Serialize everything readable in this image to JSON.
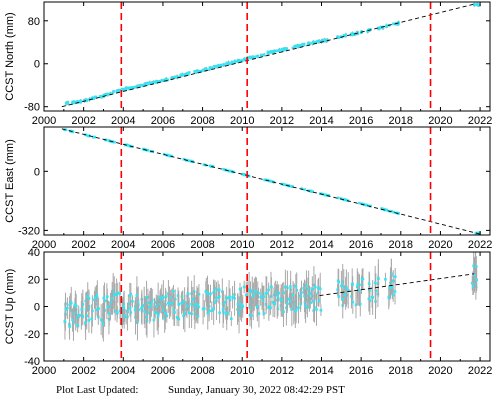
{
  "footer": {
    "label": "Plot Last Updated:",
    "timestamp": "Sunday, January 30, 2022 08:42:29 PST"
  },
  "style": {
    "trend_line_color": "#000000",
    "point_color": "#33e5f5",
    "error_bar_color": "#a8a8a8",
    "event_line_color": "#ff0000"
  },
  "chart_data": [
    {
      "type": "scatter",
      "ylabel": "CCST North (mm)",
      "xlim": [
        2000,
        2022.5
      ],
      "ylim": [
        -88,
        115
      ],
      "xticks": [
        "2000",
        "2002",
        "2004",
        "2006",
        "2008",
        "2010",
        "2012",
        "2014",
        "2016",
        "2018",
        "2020",
        "2022"
      ],
      "yticks": [
        -80,
        0,
        80
      ],
      "event_lines_x": [
        2003.9,
        2010.25,
        2019.5
      ],
      "trend": {
        "x": [
          2000.9,
          2021.8
        ],
        "y": [
          -80,
          112
        ]
      },
      "series": [
        {
          "x": [
            2001.0,
            2001.5,
            2002.0,
            2002.5,
            2003.0,
            2003.5,
            2004.0,
            2004.5,
            2005.0,
            2005.5,
            2006.0,
            2006.5,
            2007.0,
            2007.5,
            2008.0,
            2008.5,
            2009.0,
            2009.5,
            2010.0,
            2010.5,
            2011.0,
            2011.5,
            2012.0,
            2012.5,
            2013.0,
            2013.5,
            2013.9,
            2014.8,
            2015.3,
            2015.9,
            2016.8,
            2017.3,
            2021.7
          ],
          "y": [
            -73,
            -72,
            -70,
            -64,
            -60,
            -53,
            -48,
            -44,
            -39,
            -35,
            -31,
            -26,
            -21,
            -16,
            -12,
            -7,
            -2,
            2,
            7,
            12,
            17,
            22,
            26,
            30,
            35,
            39,
            41,
            49,
            53,
            58,
            65,
            70,
            110
          ]
        }
      ]
    },
    {
      "type": "scatter",
      "ylabel": "CCST East (mm)",
      "xlim": [
        2000,
        2022.5
      ],
      "ylim": [
        -345,
        240
      ],
      "xticks": [
        "2000",
        "2002",
        "2004",
        "2006",
        "2008",
        "2010",
        "2012",
        "2014",
        "2016",
        "2018",
        "2020",
        "2022"
      ],
      "yticks": [
        0,
        -320
      ],
      "event_lines_x": [
        2003.9,
        2010.25,
        2019.5
      ],
      "trend": {
        "x": [
          2000.9,
          2022
        ],
        "y": [
          230,
          -340
        ]
      },
      "series": [
        {
          "x": [
            2001.0,
            2002.0,
            2003.0,
            2004.0,
            2005.0,
            2006.0,
            2007.0,
            2008.0,
            2009.0,
            2010.0,
            2011.0,
            2012.0,
            2013.0,
            2013.9,
            2014.8,
            2015.9,
            2016.8,
            2017.3,
            2021.7
          ],
          "y": [
            227,
            200,
            173,
            146,
            120,
            93,
            66,
            39,
            12,
            -15,
            -42,
            -69,
            -95,
            -120,
            -144,
            -173,
            -197,
            -211,
            -335
          ]
        }
      ]
    },
    {
      "type": "scatter",
      "ylabel": "CCST Up (mm)",
      "xlim": [
        2000,
        2022.5
      ],
      "ylim": [
        -40,
        40
      ],
      "xticks": [
        "2000",
        "2002",
        "2004",
        "2006",
        "2008",
        "2010",
        "2012",
        "2014",
        "2016",
        "2018",
        "2020",
        "2022"
      ],
      "yticks": [
        -40,
        -20,
        0,
        20,
        40
      ],
      "event_lines_x": [
        2003.9,
        2010.25,
        2019.5
      ],
      "trend": {
        "x": [
          2013.9,
          2021.7
        ],
        "y": [
          8,
          24
        ]
      },
      "series": [
        {
          "x": [
            2001.0,
            2001.5,
            2002.0,
            2002.5,
            2003.0,
            2003.5,
            2004.0,
            2004.5,
            2005.0,
            2005.5,
            2006.0,
            2006.5,
            2007.0,
            2007.5,
            2008.0,
            2008.5,
            2009.0,
            2009.5,
            2010.0,
            2010.5,
            2011.0,
            2011.5,
            2012.0,
            2012.5,
            2013.0,
            2013.5,
            2014.8,
            2015.5,
            2016.3,
            2017.2,
            2021.6
          ],
          "y": [
            -8,
            -3,
            -5,
            2,
            -4,
            3,
            -2,
            1,
            -5,
            0,
            -3,
            2,
            -2,
            3,
            1,
            5,
            3,
            0,
            6,
            3,
            2,
            7,
            4,
            6,
            5,
            6,
            9,
            10,
            11,
            14,
            24
          ]
        }
      ]
    }
  ]
}
